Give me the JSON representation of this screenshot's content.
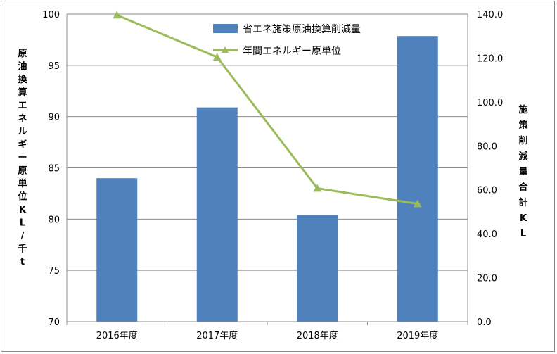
{
  "chart_data": {
    "type": "bar",
    "categories": [
      "2016年度",
      "2017年度",
      "2018年度",
      "2019年度"
    ],
    "series": [
      {
        "name": "省エネ施策原油換算削減量",
        "kind": "bar",
        "axis": "right",
        "color": "#4F81BD",
        "values": [
          65.3,
          97.5,
          48.5,
          130.0
        ]
      },
      {
        "name": "年間エネルギー原単位",
        "kind": "line",
        "marker": "triangle",
        "axis": "left",
        "color": "#9BBB59",
        "values": [
          99.9,
          95.8,
          83.0,
          81.5
        ]
      }
    ],
    "y_left": {
      "label": "原油換算エネルギー原単位KL/千t",
      "label_chars": [
        "原",
        "油",
        "換",
        "算",
        "エ",
        "ネ",
        "ル",
        "ギ",
        "ー",
        "原",
        "単",
        "位",
        "K",
        "L",
        "/",
        "千",
        "t"
      ],
      "ylim": [
        70,
        100
      ],
      "ticks": [
        "70",
        "75",
        "80",
        "85",
        "90",
        "95",
        "100"
      ]
    },
    "y_right": {
      "label": "施策削減量合計KL",
      "label_chars": [
        "施",
        "策",
        "削",
        "減",
        "量",
        "合",
        "計",
        "K",
        "L"
      ],
      "ylim": [
        0,
        140
      ],
      "ticks": [
        "0.0",
        "20.0",
        "40.0",
        "60.0",
        "80.0",
        "100.0",
        "120.0",
        "140.0"
      ]
    },
    "grid": true,
    "legend": "top-right"
  }
}
